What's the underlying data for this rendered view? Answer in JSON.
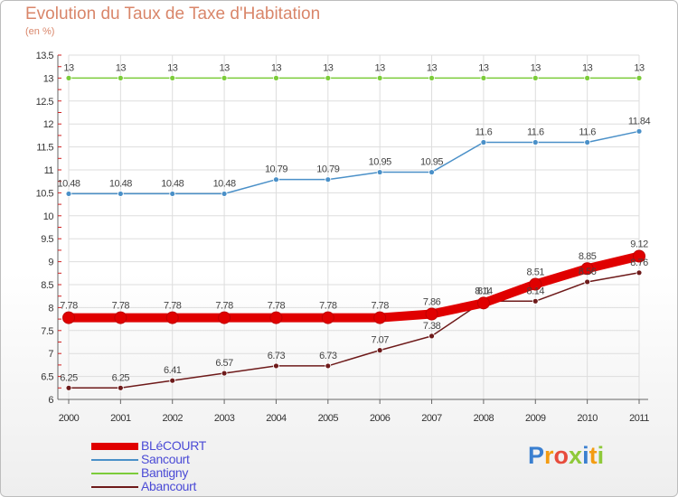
{
  "chart_data": {
    "type": "line",
    "title": "Evolution du Taux de Taxe d'Habitation",
    "ylabel": "(en %)",
    "xlabel": "",
    "x": [
      "2000",
      "2001",
      "2002",
      "2003",
      "2004",
      "2005",
      "2006",
      "2007",
      "2008",
      "2009",
      "2010",
      "2011"
    ],
    "ylim": [
      6,
      13.5
    ],
    "yticks": [
      "6",
      "6.5",
      "7",
      "7.5",
      "8",
      "8.5",
      "9",
      "9.5",
      "10",
      "10.5",
      "11",
      "11.5",
      "12",
      "12.5",
      "13",
      "13.5"
    ],
    "grid": true,
    "legend": "bottom-left",
    "series": [
      {
        "name": "BLéCOURT",
        "color": "#e00000",
        "values": [
          7.78,
          7.78,
          7.78,
          7.78,
          7.78,
          7.78,
          7.78,
          7.86,
          8.1,
          8.51,
          8.85,
          9.12
        ],
        "labels": [
          "7.78",
          "7.78",
          "7.78",
          "7.78",
          "7.78",
          "7.78",
          "7.78",
          "7.86",
          "8.1",
          "8.51",
          "8.85",
          "9.12"
        ]
      },
      {
        "name": "Sancourt",
        "color": "#4a90c8",
        "values": [
          10.48,
          10.48,
          10.48,
          10.48,
          10.79,
          10.79,
          10.95,
          10.95,
          11.6,
          11.6,
          11.6,
          11.84
        ],
        "labels": [
          "10.48",
          "10.48",
          "10.48",
          "10.48",
          "10.79",
          "10.79",
          "10.95",
          "10.95",
          "11.6",
          "11.6",
          "11.6",
          "11.84"
        ]
      },
      {
        "name": "Bantigny",
        "color": "#7ccc3a",
        "values": [
          13,
          13,
          13,
          13,
          13,
          13,
          13,
          13,
          13,
          13,
          13,
          13
        ],
        "labels": [
          "13",
          "13",
          "13",
          "13",
          "13",
          "13",
          "13",
          "13",
          "13",
          "13",
          "13",
          "13"
        ]
      },
      {
        "name": "Abancourt",
        "color": "#6e1a1a",
        "values": [
          6.25,
          6.25,
          6.41,
          6.57,
          6.73,
          6.73,
          7.07,
          7.38,
          8.14,
          8.14,
          8.56,
          8.76
        ],
        "labels": [
          "6.25",
          "6.25",
          "6.41",
          "6.57",
          "6.73",
          "6.73",
          "7.07",
          "7.38",
          "8.14",
          "8.14",
          "8.56",
          "8.76"
        ]
      }
    ]
  },
  "logo": {
    "text": "Proxiti"
  }
}
